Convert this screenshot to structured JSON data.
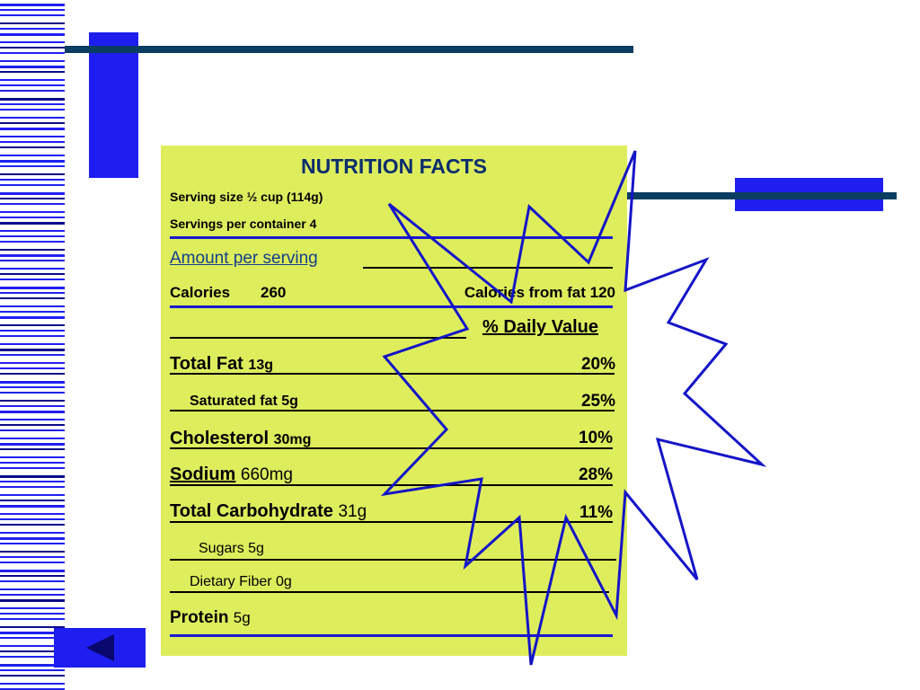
{
  "label": {
    "title": "NUTRITION FACTS",
    "serving_size": "Serving size ½ cup (114g)",
    "servings_per_container": "Servings per container 4",
    "amount_per_serving": "Amount per serving",
    "calories_label": "Calories",
    "calories_value": "260",
    "calories_from_fat": "Calories from fat 120",
    "daily_value_header": "% Daily Value",
    "rows": [
      {
        "name": "Total Fat",
        "amount": "13g",
        "percent": "20%"
      },
      {
        "name": "Saturated fat 5g",
        "amount": "",
        "percent": "25%"
      },
      {
        "name": "Cholesterol",
        "amount": "30mg",
        "percent": "10%"
      },
      {
        "name": "Sodium",
        "amount": "660mg",
        "percent": "28%"
      },
      {
        "name": "Total Carbohydrate",
        "amount": "31g",
        "percent": "11%"
      },
      {
        "name": "Sugars   5g",
        "amount": "",
        "percent": ""
      },
      {
        "name": "Dietary Fiber  0g",
        "amount": "",
        "percent": ""
      },
      {
        "name": "Protein",
        "amount": "5g",
        "percent": ""
      }
    ]
  },
  "colors": {
    "panel": "#deed5c",
    "accent_blue": "#1a1ad0",
    "dark_navy": "#0a3d62",
    "stripe_blue": "#1e1ef0"
  },
  "icons": [
    "back-arrow-icon",
    "starburst"
  ]
}
